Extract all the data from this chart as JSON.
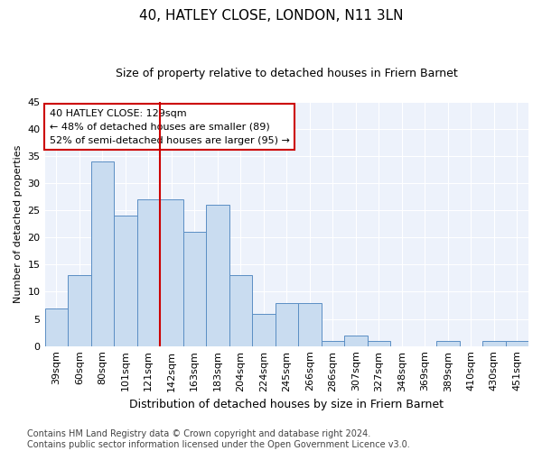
{
  "title": "40, HATLEY CLOSE, LONDON, N11 3LN",
  "subtitle": "Size of property relative to detached houses in Friern Barnet",
  "xlabel": "Distribution of detached houses by size in Friern Barnet",
  "ylabel": "Number of detached properties",
  "categories": [
    "39sqm",
    "60sqm",
    "80sqm",
    "101sqm",
    "121sqm",
    "142sqm",
    "163sqm",
    "183sqm",
    "204sqm",
    "224sqm",
    "245sqm",
    "266sqm",
    "286sqm",
    "307sqm",
    "327sqm",
    "348sqm",
    "369sqm",
    "389sqm",
    "410sqm",
    "430sqm",
    "451sqm"
  ],
  "values": [
    7,
    13,
    34,
    24,
    27,
    27,
    21,
    26,
    13,
    6,
    8,
    8,
    1,
    2,
    1,
    0,
    0,
    1,
    0,
    1,
    1
  ],
  "bar_color": "#c9dcf0",
  "bar_edge_color": "#5b8ec4",
  "ylim": [
    0,
    45
  ],
  "yticks": [
    0,
    5,
    10,
    15,
    20,
    25,
    30,
    35,
    40,
    45
  ],
  "property_line_x": 4.5,
  "property_line_color": "#cc0000",
  "annotation_line1": "40 HATLEY CLOSE: 129sqm",
  "annotation_line2": "← 48% of detached houses are smaller (89)",
  "annotation_line3": "52% of semi-detached houses are larger (95) →",
  "annotation_box_color": "#ffffff",
  "annotation_box_edge_color": "#cc0000",
  "footer_line1": "Contains HM Land Registry data © Crown copyright and database right 2024.",
  "footer_line2": "Contains public sector information licensed under the Open Government Licence v3.0.",
  "background_color": "#ffffff",
  "plot_bg_color": "#edf2fb",
  "grid_color": "#ffffff",
  "title_fontsize": 11,
  "subtitle_fontsize": 9,
  "ylabel_fontsize": 8,
  "xlabel_fontsize": 9,
  "tick_fontsize": 8,
  "annotation_fontsize": 8,
  "footer_fontsize": 7
}
